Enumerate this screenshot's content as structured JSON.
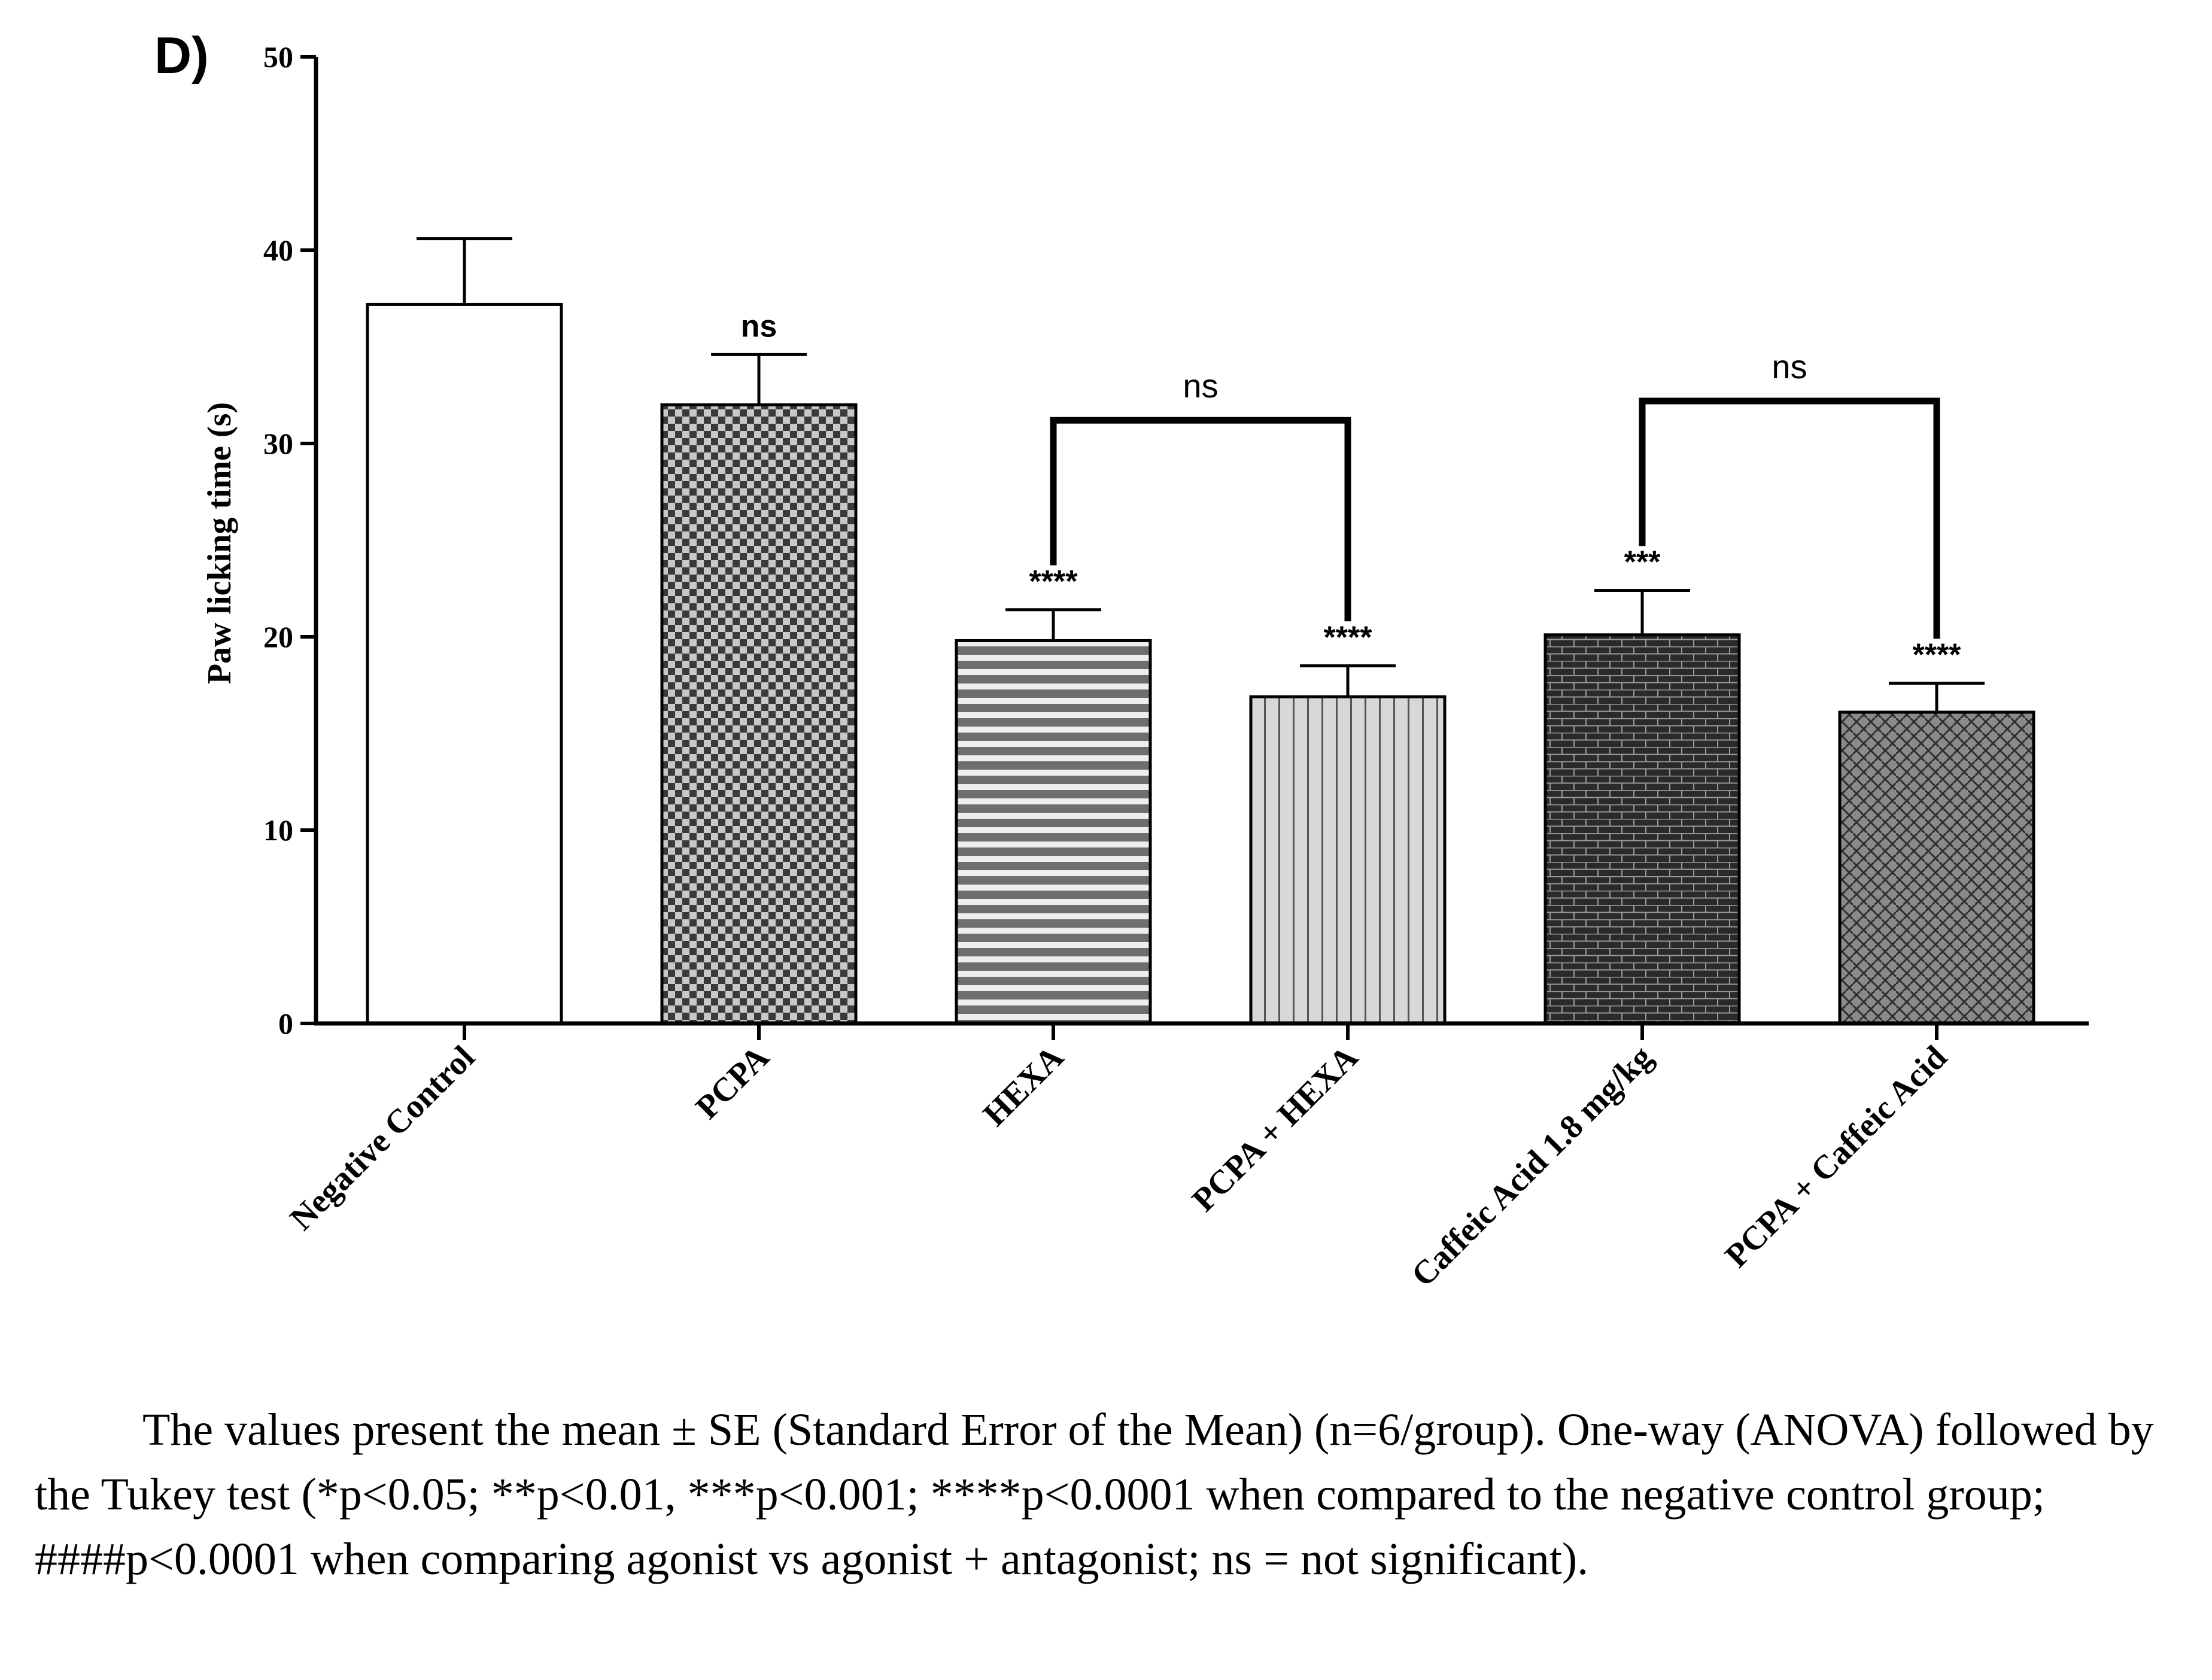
{
  "panel_label": "D)",
  "chart_data": {
    "type": "bar",
    "ylabel": "Paw licking time (s)",
    "ylim": [
      0,
      50
    ],
    "yticks": [
      0,
      10,
      20,
      30,
      40,
      50
    ],
    "categories": [
      "Negative Control",
      "PCPA",
      "HEXA",
      "PCPA + HEXA",
      "Caffeic Acid 1.8 mg/kg",
      "PCPA + Caffeic Acid"
    ],
    "values": [
      37.2,
      32.0,
      19.8,
      16.9,
      20.1,
      16.1
    ],
    "errors": [
      3.4,
      2.6,
      1.6,
      1.6,
      2.3,
      1.5
    ],
    "significance": [
      "",
      "ns",
      "****",
      "****",
      "***",
      "****"
    ],
    "patterns": [
      "none",
      "checker",
      "horizontal-stripes",
      "vertical-stripes",
      "brick",
      "weave"
    ],
    "brackets": [
      {
        "from": 2,
        "to": 3,
        "label": "ns"
      },
      {
        "from": 4,
        "to": 5,
        "label": "ns"
      }
    ]
  },
  "caption": "The values present the mean ± SE (Standard Error of the Mean) (n=6/group). One-way (ANOVA) followed by the Tukey test (*p<0.05; **p<0.01, ***p<0.001; ****p<0.0001 when compared to the negative control group; ####p<0.0001 when comparing agonist vs agonist + antagonist; ns = not significant)."
}
